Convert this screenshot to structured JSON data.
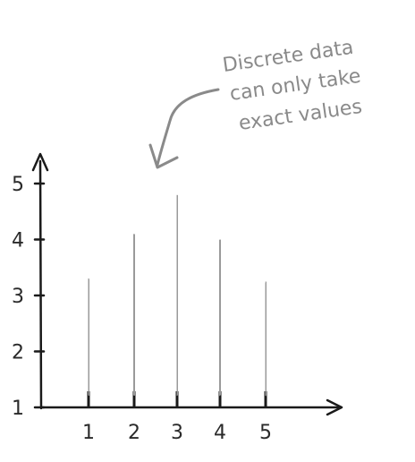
{
  "chart_data": {
    "type": "bar",
    "title": "",
    "xlabel": "",
    "ylabel": "",
    "categories": [
      "1",
      "2",
      "3",
      "4",
      "5"
    ],
    "values": [
      3.25,
      4.05,
      4.75,
      3.95,
      3.2
    ],
    "x_ticks": [
      "1",
      "2",
      "3",
      "4",
      "5"
    ],
    "y_ticks": [
      "1",
      "2",
      "3",
      "4",
      "5"
    ],
    "ylim": [
      1,
      5
    ],
    "grid": false,
    "style": "hand-drawn vertical strokes",
    "colors": {
      "bar": "#9a9a9a",
      "axis": "#1a1a1a",
      "annotation": "#8a8a8a"
    },
    "annotation": {
      "lines": [
        "Discrete data",
        "can only take",
        "exact values"
      ],
      "arrow": true
    }
  }
}
